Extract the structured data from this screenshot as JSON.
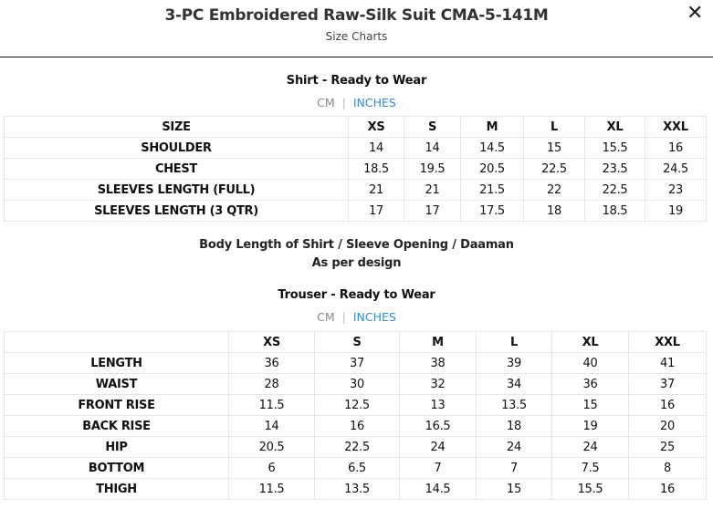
{
  "header": {
    "title": "3-PC Embroidered Raw-Silk Suit CMA-5-141M",
    "subtitle": "Size Charts",
    "close_icon": "close-icon"
  },
  "shirt": {
    "title": "Shirt - Ready to Wear",
    "units": {
      "cm": "CM",
      "separator": "|",
      "inches": "INCHES",
      "active": "INCHES",
      "active_color": "#2f8ae0"
    },
    "columns": [
      "SIZE",
      "XS",
      "S",
      "M",
      "L",
      "XL",
      "XXL"
    ],
    "rows": [
      [
        "SHOULDER",
        "14",
        "14",
        "14.5",
        "15",
        "15.5",
        "16"
      ],
      [
        "CHEST",
        "18.5",
        "19.5",
        "20.5",
        "22.5",
        "23.5",
        "24.5"
      ],
      [
        "SLEEVES LENGTH (FULL)",
        "21",
        "21",
        "21.5",
        "22",
        "22.5",
        "23"
      ],
      [
        "SLEEVES LENGTH (3 QTR)",
        "17",
        "17",
        "17.5",
        "18",
        "18.5",
        "19"
      ]
    ]
  },
  "note": {
    "line1": "Body Length of Shirt / Sleeve Opening / Daaman",
    "line2": "As per design"
  },
  "trouser": {
    "title": "Trouser - Ready to Wear",
    "units": {
      "cm": "CM",
      "separator": "|",
      "inches": "INCHES",
      "active": "INCHES",
      "active_color": "#2f8ae0"
    },
    "columns": [
      "",
      "XS",
      "S",
      "M",
      "L",
      "XL",
      "XXL"
    ],
    "rows": [
      [
        "LENGTH",
        "36",
        "37",
        "38",
        "39",
        "40",
        "41"
      ],
      [
        "WAIST",
        "28",
        "30",
        "32",
        "34",
        "36",
        "37"
      ],
      [
        "FRONT RISE",
        "11.5",
        "12.5",
        "13",
        "13.5",
        "15",
        "16"
      ],
      [
        "BACK RISE",
        "14",
        "16",
        "16.5",
        "18",
        "19",
        "20"
      ],
      [
        "HIP",
        "20.5",
        "22.5",
        "24",
        "24",
        "24",
        "25"
      ],
      [
        "BOTTOM",
        "6",
        "6.5",
        "7",
        "7",
        "7.5",
        "8"
      ],
      [
        "THIGH",
        "11.5",
        "13.5",
        "14.5",
        "15",
        "15.5",
        "16"
      ]
    ]
  }
}
